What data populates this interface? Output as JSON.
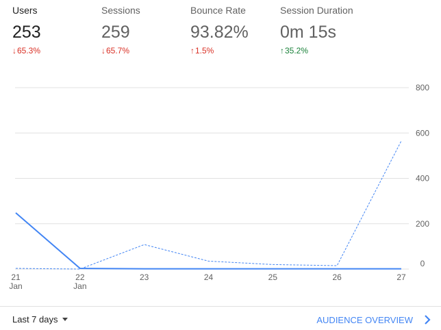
{
  "metrics": [
    {
      "label": "Users",
      "value": "253",
      "change": "65.3%",
      "direction": "down",
      "tone": "bad",
      "active": true
    },
    {
      "label": "Sessions",
      "value": "259",
      "change": "65.7%",
      "direction": "down",
      "tone": "bad",
      "active": false
    },
    {
      "label": "Bounce Rate",
      "value": "93.82%",
      "change": "1.5%",
      "direction": "up",
      "tone": "bad",
      "active": false
    },
    {
      "label": "Session Duration",
      "value": "0m 15s",
      "change": "35.2%",
      "direction": "up",
      "tone": "good",
      "active": false
    }
  ],
  "footer": {
    "range_label": "Last 7 days",
    "overview_label": "AUDIENCE OVERVIEW"
  },
  "colors": {
    "series": "#4285f4",
    "grid": "#e0e0e0",
    "axis_text": "#616161"
  },
  "chart_data": {
    "type": "line",
    "x": [
      "21",
      "22",
      "23",
      "24",
      "25",
      "26",
      "27"
    ],
    "x_sublabels": [
      "Jan",
      "Jan",
      "",
      "",
      "",
      "",
      ""
    ],
    "series": [
      {
        "style": "solid",
        "values": [
          248,
          3,
          1,
          1,
          1,
          1,
          1
        ]
      },
      {
        "style": "dashed",
        "values": [
          3,
          0,
          108,
          35,
          20,
          15,
          565
        ]
      }
    ],
    "yticks": [
      0,
      200,
      400,
      600,
      800
    ],
    "ylim": [
      0,
      800
    ],
    "grid": true,
    "y_axis_side": "right"
  }
}
